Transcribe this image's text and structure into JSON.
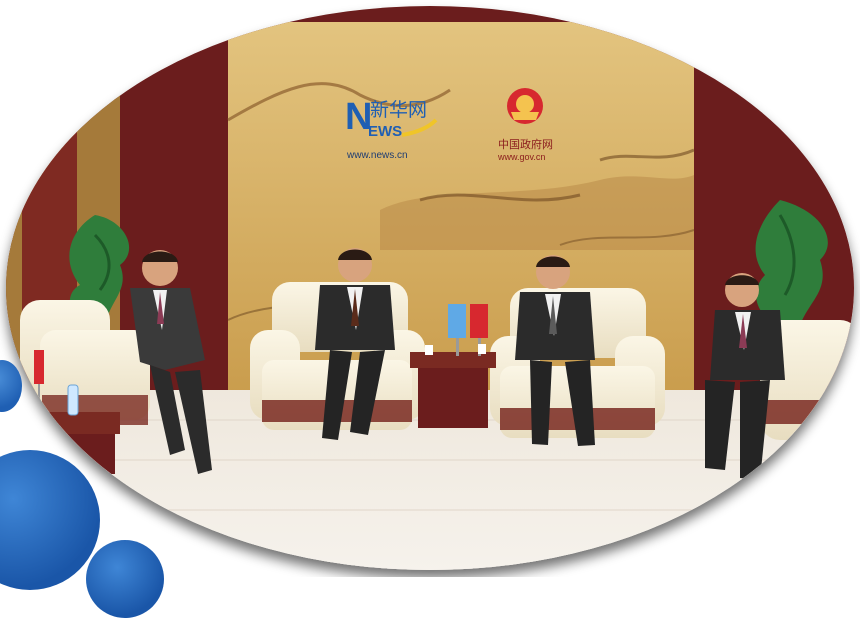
{
  "scene": {
    "xinhua_logo": {
      "brand_cn": "新华网",
      "brand_en": "EWS",
      "url": "www.news.cn"
    },
    "gov_logo": {
      "name_cn": "中国政府网",
      "url": "www.gov.cn"
    }
  },
  "colors": {
    "frame_shadow": "#2b2b2b",
    "wall_panel": "#d9b56a",
    "wood_wall": "#6b1d1d",
    "floor": "#e9e2d8",
    "sofa": "#f2ecd7",
    "bubble_blue": "#1f5fb3",
    "news_blue": "#1f5fb3",
    "flag_red": "#d7282f"
  }
}
